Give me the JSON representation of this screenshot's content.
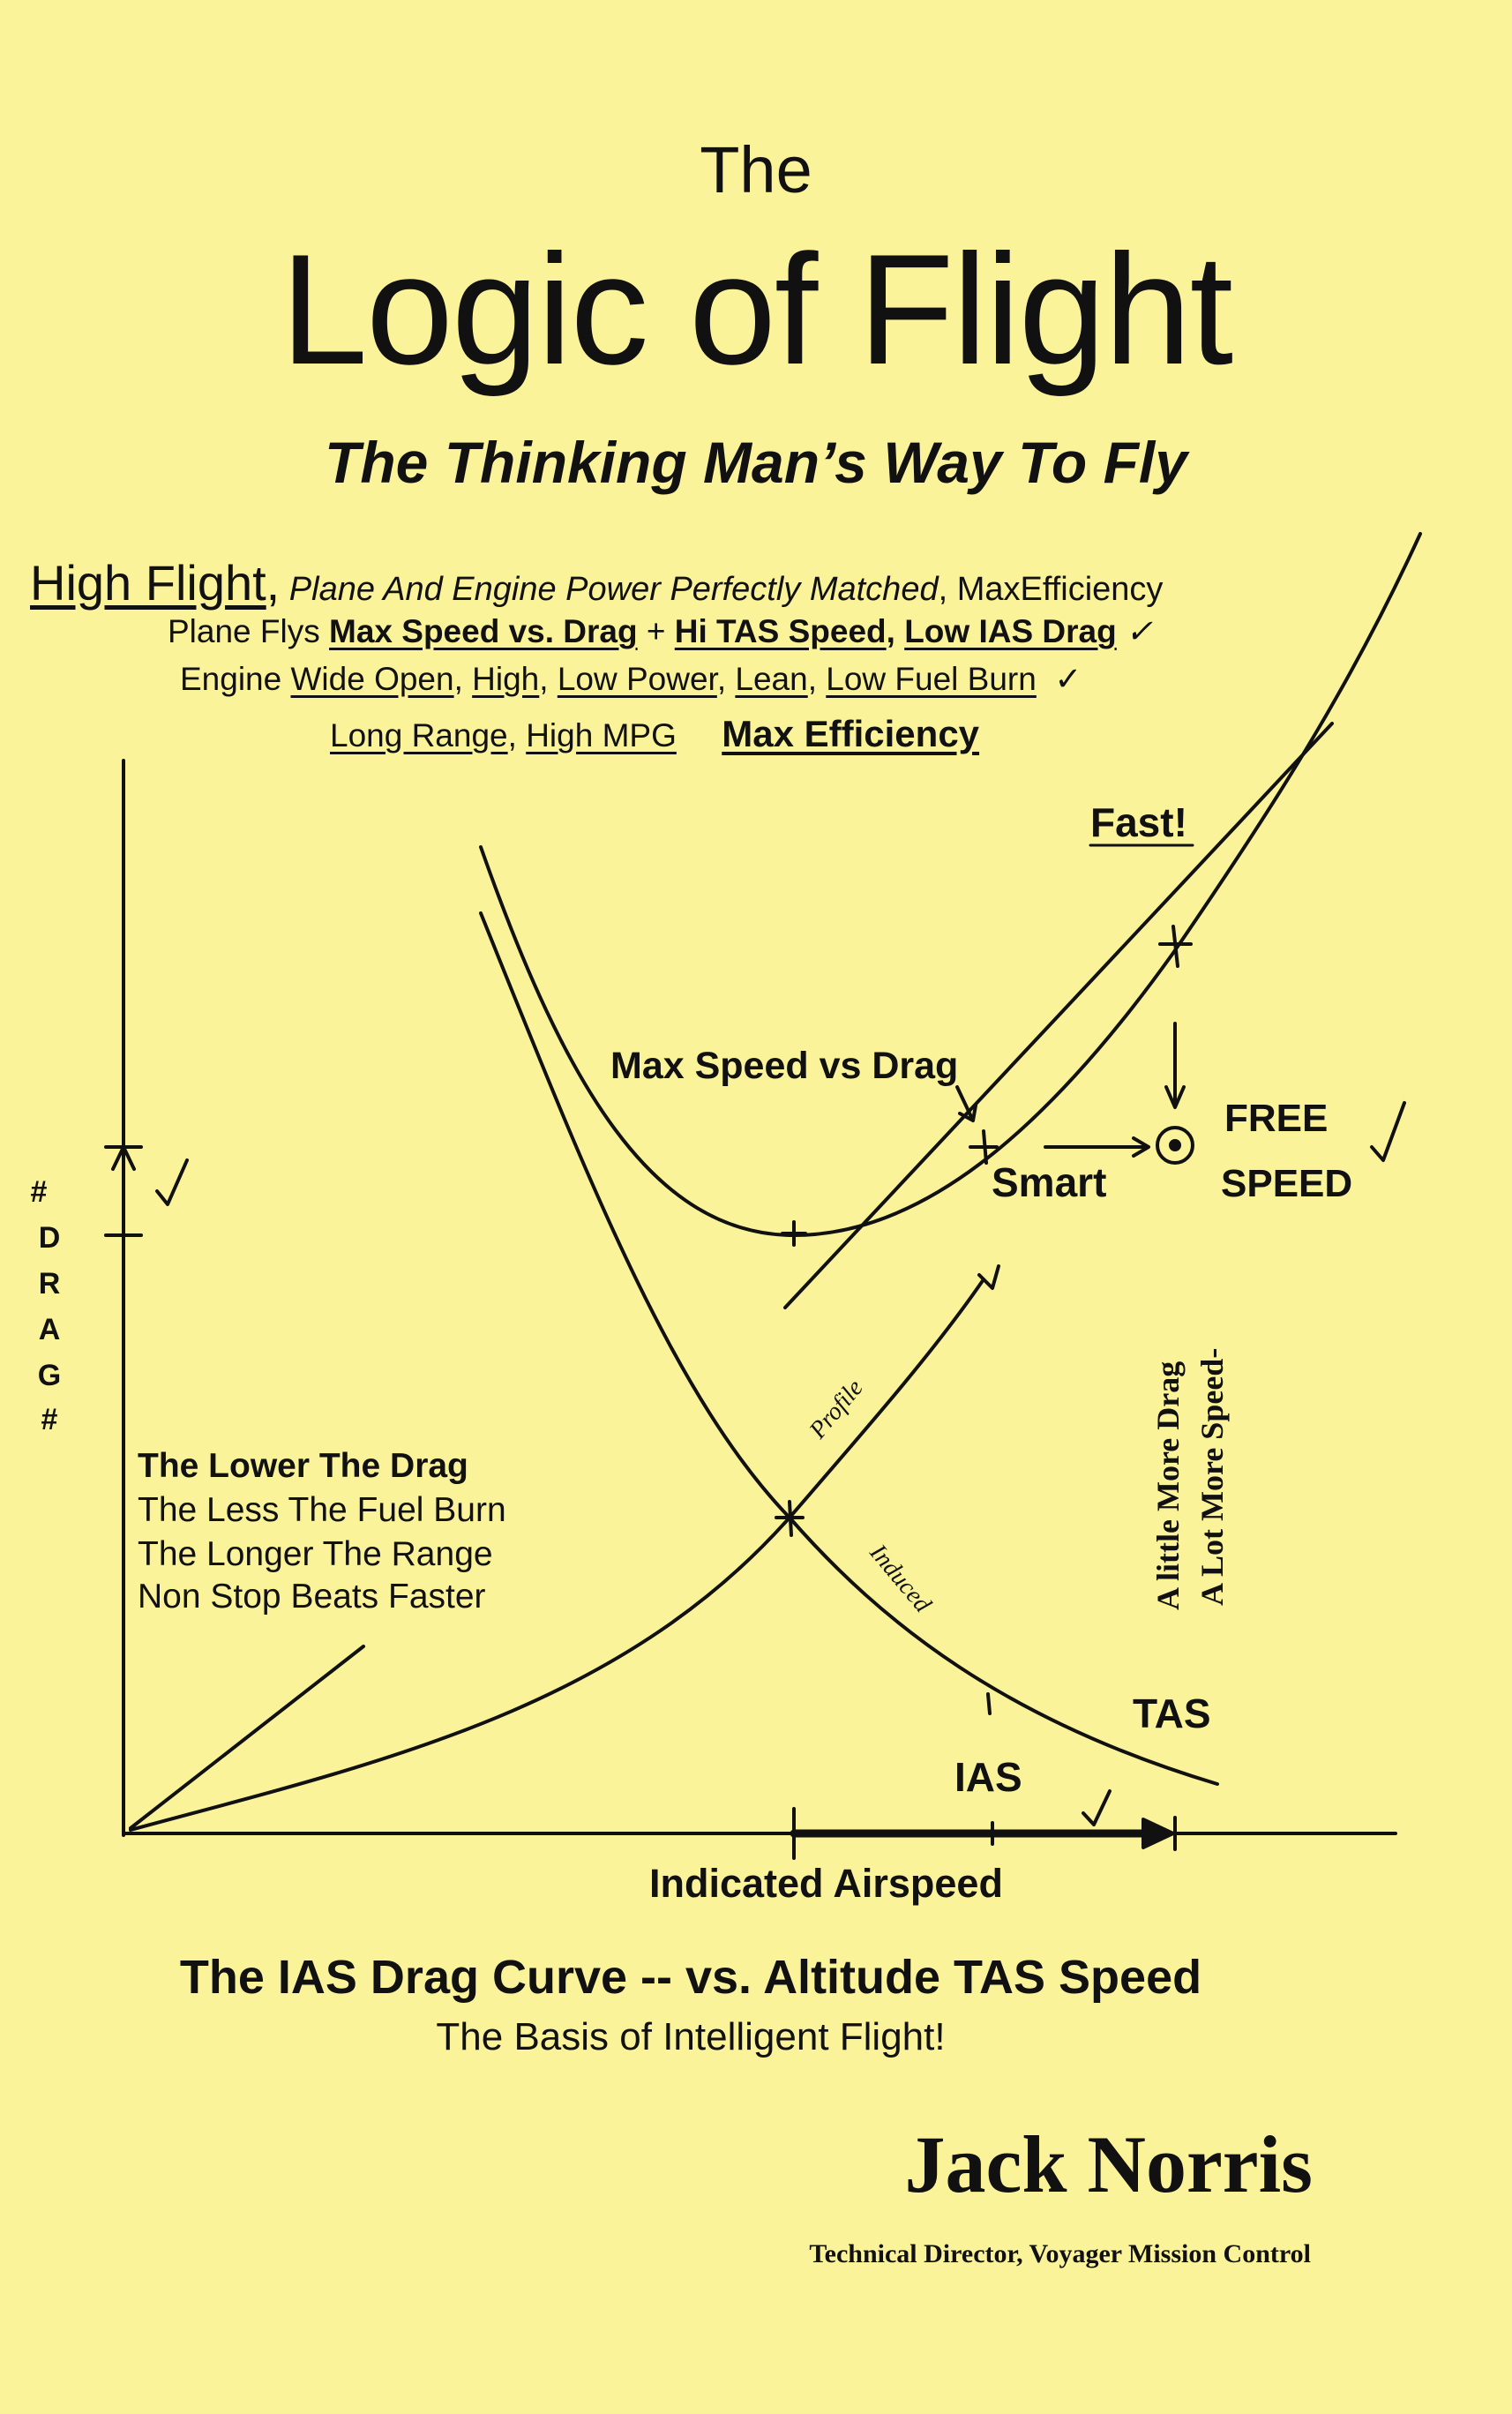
{
  "cover": {
    "the": "The",
    "title": "Logic of Flight",
    "subtitle": "The Thinking Man’s Way To Fly"
  },
  "high_flight": {
    "heading": "High Flight",
    "comma": ",",
    "line1_italic": "Plane And Engine Power Perfectly Matched",
    "line1_end": ", MaxEfficiency",
    "line2_prefix": "Plane Flys ",
    "line2_a": "Max Speed vs. Drag",
    "line2_plus": " + ",
    "line2_b": "Hi TAS Speed",
    "line2_sep": ", ",
    "line2_c": "Low IAS Drag",
    "check": "✓",
    "line3_prefix": "Engine ",
    "line3_a": "Wide Open",
    "line3_b": "High",
    "line3_c": "Low Power",
    "line3_d": "Lean",
    "line3_e": "Low Fuel Burn",
    "line4_a": "Long Range",
    "line4_b": "High MPG",
    "line4_c": "Max Efficiency"
  },
  "diagram": {
    "fast": "Fast!",
    "max_speed_vs_drag": "Max Speed vs Drag",
    "smart": "Smart",
    "free": "FREE",
    "speed": "SPEED",
    "profile": "Profile",
    "induced": "Induced",
    "more_drag": "A little More Drag",
    "more_speed": "A Lot More Speed-",
    "tas": "TAS",
    "ias": "IAS",
    "x_axis": "Indicated Airspeed",
    "y_axis_letters": [
      "#",
      "D",
      "R",
      "A",
      "G",
      "#"
    ],
    "check": "✓"
  },
  "lower_drag": {
    "line1": "The Lower The Drag",
    "line2": "The Less The Fuel Burn",
    "line3": "The Longer The Range",
    "line4": "Non Stop Beats Faster"
  },
  "caption": {
    "line1": "The IAS Drag Curve -- vs. Altitude TAS Speed",
    "line2": "The Basis of Intelligent Flight!"
  },
  "author": {
    "name": "Jack Norris",
    "title": "Technical Director, Voyager Mission Control"
  },
  "colors": {
    "background": "#FAF39A",
    "ink": "#111111"
  }
}
